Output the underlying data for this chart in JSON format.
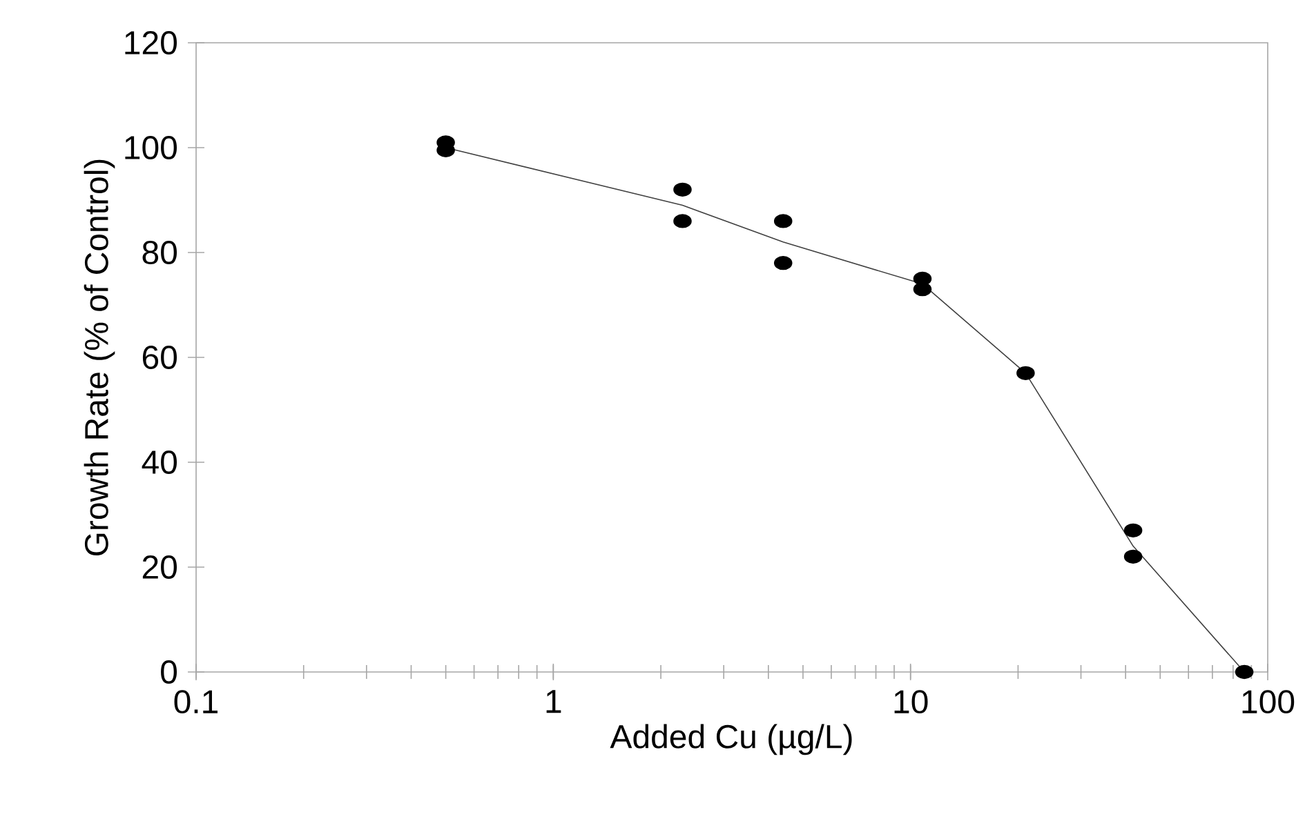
{
  "chart_data": {
    "type": "scatter",
    "xlabel": "Added Cu (µg/L)",
    "ylabel": "Growth Rate (% of Control)",
    "log": "x",
    "xlim": [
      0.1,
      100
    ],
    "ylim": [
      0,
      120
    ],
    "xticks": [
      0.1,
      1,
      10,
      100
    ],
    "yticks": [
      0,
      20,
      40,
      60,
      80,
      100,
      120
    ],
    "series": [
      {
        "color": "#000000",
        "marker": "circle",
        "x": [
          0.5,
          0.5,
          2.3,
          2.3,
          4.4,
          4.4,
          10.8,
          10.8,
          21,
          42,
          42,
          86
        ],
        "values": [
          101,
          99.5,
          92,
          86,
          86,
          78,
          75,
          73,
          57,
          27,
          22,
          0
        ]
      },
      {
        "type": "line",
        "color": "#404040",
        "marker": "none",
        "line_style": "solid",
        "x": [
          0.5,
          2.3,
          4.4,
          10.8,
          21,
          42,
          86
        ],
        "values": [
          100,
          89,
          82,
          74,
          57,
          24,
          0
        ]
      }
    ]
  }
}
